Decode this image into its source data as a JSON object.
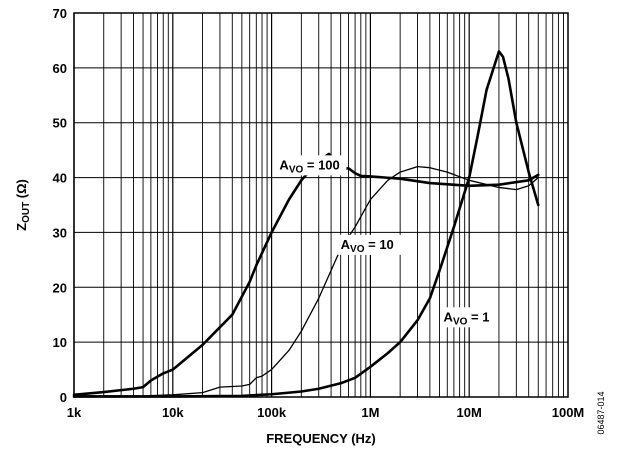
{
  "chart_data": {
    "type": "line",
    "xscale": "log",
    "xlim": [
      1000,
      100000000
    ],
    "ylim": [
      0,
      70
    ],
    "xlabel": "FREQUENCY (Hz)",
    "ylabel": {
      "main": "Z",
      "sub": "OUT",
      "unit": " (Ω)"
    },
    "x_tick_labels": [
      "1k",
      "10k",
      "100k",
      "1M",
      "10M",
      "100M"
    ],
    "x_tick_values": [
      1000,
      10000,
      100000,
      1000000,
      10000000,
      100000000
    ],
    "y_ticks": [
      0,
      10,
      20,
      30,
      40,
      50,
      60,
      70
    ],
    "grid": true,
    "figure_code": "06487-014",
    "series": [
      {
        "label": {
          "main": "A",
          "sub": "VO",
          "rest": " = 100"
        },
        "stroke_width": 2.6,
        "points": [
          [
            1000,
            0.4
          ],
          [
            2000,
            0.9
          ],
          [
            4000,
            1.5
          ],
          [
            5000,
            1.8
          ],
          [
            6000,
            3
          ],
          [
            8000,
            4.3
          ],
          [
            10000,
            5
          ],
          [
            20000,
            9.5
          ],
          [
            40000,
            15
          ],
          [
            60000,
            21
          ],
          [
            70000,
            24
          ],
          [
            100000,
            30
          ],
          [
            150000,
            36
          ],
          [
            200000,
            39.5
          ],
          [
            300000,
            43
          ],
          [
            380000,
            44.3
          ],
          [
            450000,
            43
          ],
          [
            500000,
            41.5
          ],
          [
            600000,
            41.7
          ],
          [
            700000,
            40.8
          ],
          [
            800000,
            40.3
          ],
          [
            1000000,
            40.2
          ],
          [
            2000000,
            39.8
          ],
          [
            4000000,
            39
          ],
          [
            10000000,
            38.5
          ],
          [
            20000000,
            38.7
          ],
          [
            40000000,
            39.5
          ],
          [
            50000000,
            40.5
          ]
        ]
      },
      {
        "label": {
          "main": "A",
          "sub": "VO",
          "rest": " = 10"
        },
        "stroke_width": 1.3,
        "points": [
          [
            1000,
            0.2
          ],
          [
            5000,
            0.2
          ],
          [
            10000,
            0.4
          ],
          [
            20000,
            0.8
          ],
          [
            30000,
            1.8
          ],
          [
            50000,
            2
          ],
          [
            60000,
            2.3
          ],
          [
            70000,
            3.5
          ],
          [
            80000,
            3.8
          ],
          [
            100000,
            5
          ],
          [
            150000,
            8.5
          ],
          [
            200000,
            12
          ],
          [
            300000,
            18
          ],
          [
            500000,
            27
          ],
          [
            700000,
            31
          ],
          [
            1000000,
            36
          ],
          [
            1500000,
            39.5
          ],
          [
            2000000,
            41
          ],
          [
            3000000,
            42
          ],
          [
            4000000,
            41.8
          ],
          [
            6000000,
            41
          ],
          [
            10000000,
            39.5
          ],
          [
            20000000,
            38.2
          ],
          [
            30000000,
            37.8
          ],
          [
            40000000,
            38.5
          ],
          [
            50000000,
            40
          ]
        ]
      },
      {
        "label": {
          "main": "A",
          "sub": "VO",
          "rest": " = 1"
        },
        "stroke_width": 2.6,
        "points": [
          [
            1000,
            0.1
          ],
          [
            10000,
            0.1
          ],
          [
            50000,
            0.2
          ],
          [
            100000,
            0.5
          ],
          [
            200000,
            1
          ],
          [
            300000,
            1.5
          ],
          [
            500000,
            2.5
          ],
          [
            700000,
            3.5
          ],
          [
            1000000,
            5.5
          ],
          [
            1500000,
            8
          ],
          [
            2000000,
            10
          ],
          [
            3000000,
            14
          ],
          [
            4000000,
            18
          ],
          [
            5000000,
            23
          ],
          [
            7000000,
            31
          ],
          [
            10000000,
            40
          ],
          [
            12000000,
            47
          ],
          [
            15000000,
            56
          ],
          [
            20000000,
            63
          ],
          [
            22000000,
            62
          ],
          [
            25000000,
            58
          ],
          [
            30000000,
            50
          ],
          [
            40000000,
            41
          ],
          [
            50000000,
            35
          ]
        ]
      }
    ]
  }
}
